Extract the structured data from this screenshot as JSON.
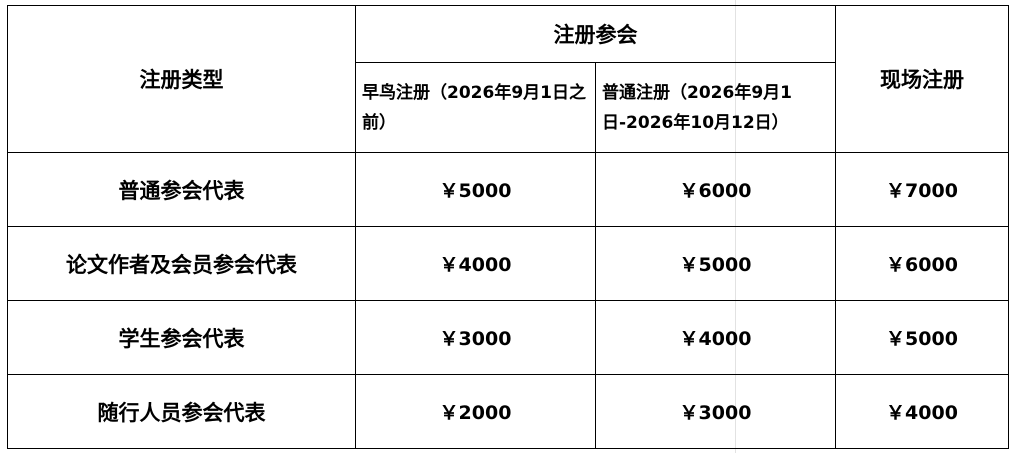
{
  "table": {
    "header": {
      "type_col": "注册类型",
      "group": "注册参会",
      "early": "早鸟注册（2026年9月1日之前）",
      "normal": "普通注册（2026年9月1日-2026年10月12日）",
      "onsite": "现场注册"
    },
    "rows": [
      {
        "type": "普通参会代表",
        "early": "￥5000",
        "normal": "￥6000",
        "onsite": "￥7000"
      },
      {
        "type": "论文作者及会员参会代表",
        "early": "￥4000",
        "normal": "￥5000",
        "onsite": "￥6000"
      },
      {
        "type": "学生参会代表",
        "early": "￥3000",
        "normal": "￥4000",
        "onsite": "￥5000"
      },
      {
        "type": "随行人员参会代表",
        "early": "￥2000",
        "normal": "￥3000",
        "onsite": "￥4000"
      }
    ]
  }
}
